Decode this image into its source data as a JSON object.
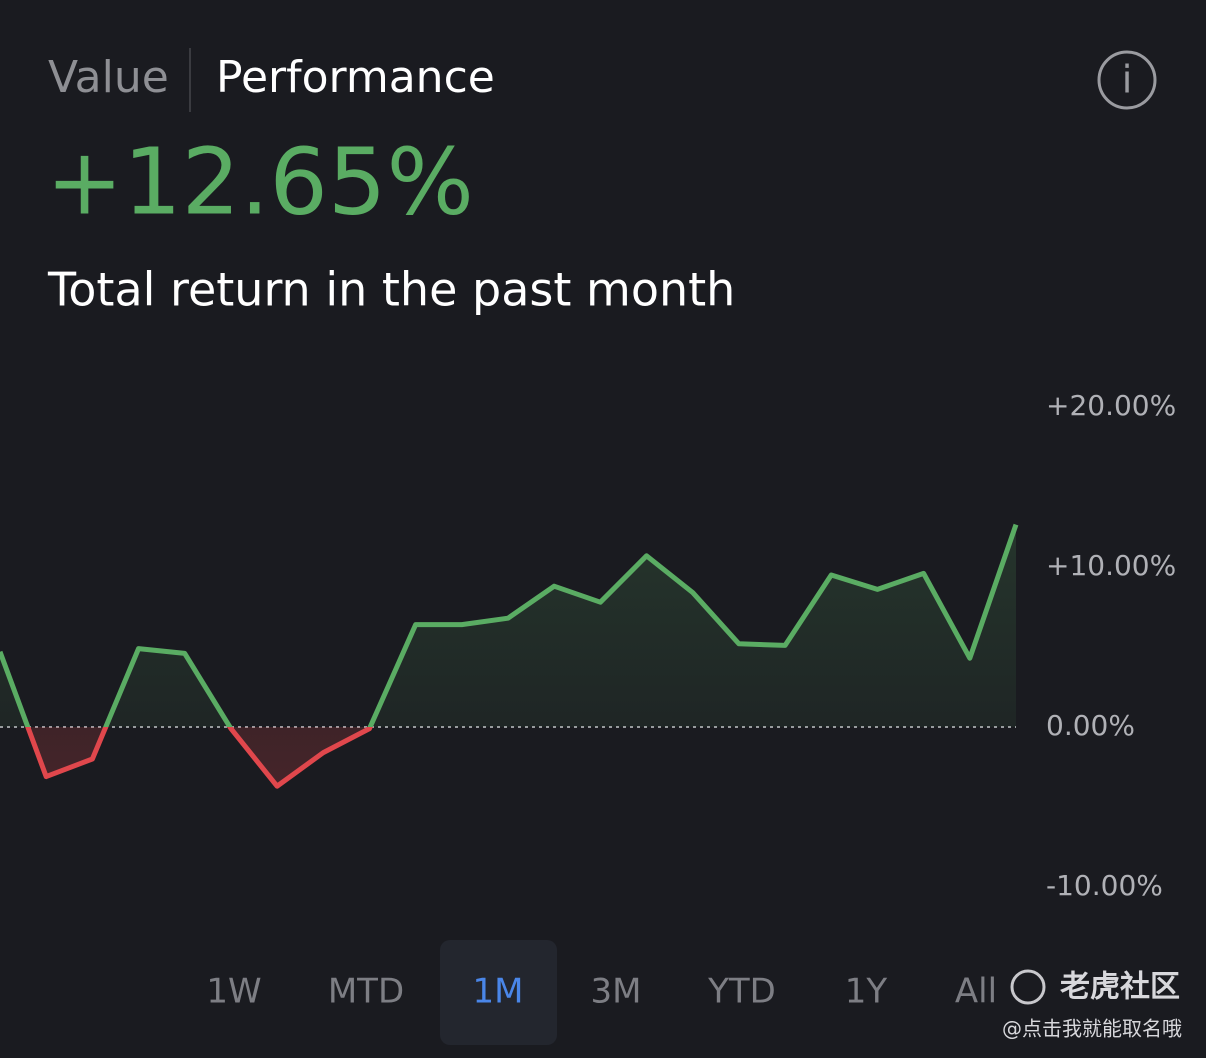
{
  "tabs": [
    "Value",
    "Performance"
  ],
  "active_tab": 1,
  "headline": "+12.65%",
  "subtitle": "Total return in the past month",
  "chart_data": {
    "type": "line",
    "values": [
      4.7,
      -3.1,
      -2.0,
      4.9,
      4.6,
      -0.1,
      -3.7,
      -1.6,
      -0.1,
      6.4,
      6.4,
      6.8,
      8.8,
      7.8,
      10.7,
      8.4,
      5.2,
      5.1,
      9.5,
      8.6,
      9.6,
      4.3,
      12.65
    ],
    "up_color": "#5aac63",
    "down_color": "#e0474c",
    "ylim": [
      -10,
      20
    ],
    "yticks": [
      {
        "value": 20,
        "label": "+20.00%"
      },
      {
        "value": 10,
        "label": "+10.00%"
      },
      {
        "value": 0,
        "label": "0.00%"
      },
      {
        "value": -10,
        "label": "-10.00%"
      }
    ]
  },
  "periods": [
    "1W",
    "MTD",
    "1M",
    "3M",
    "YTD",
    "1Y",
    "All"
  ],
  "active_period": 2,
  "watermark": {
    "brand": "老虎社区",
    "handle": "@点击我就能取名哦"
  }
}
